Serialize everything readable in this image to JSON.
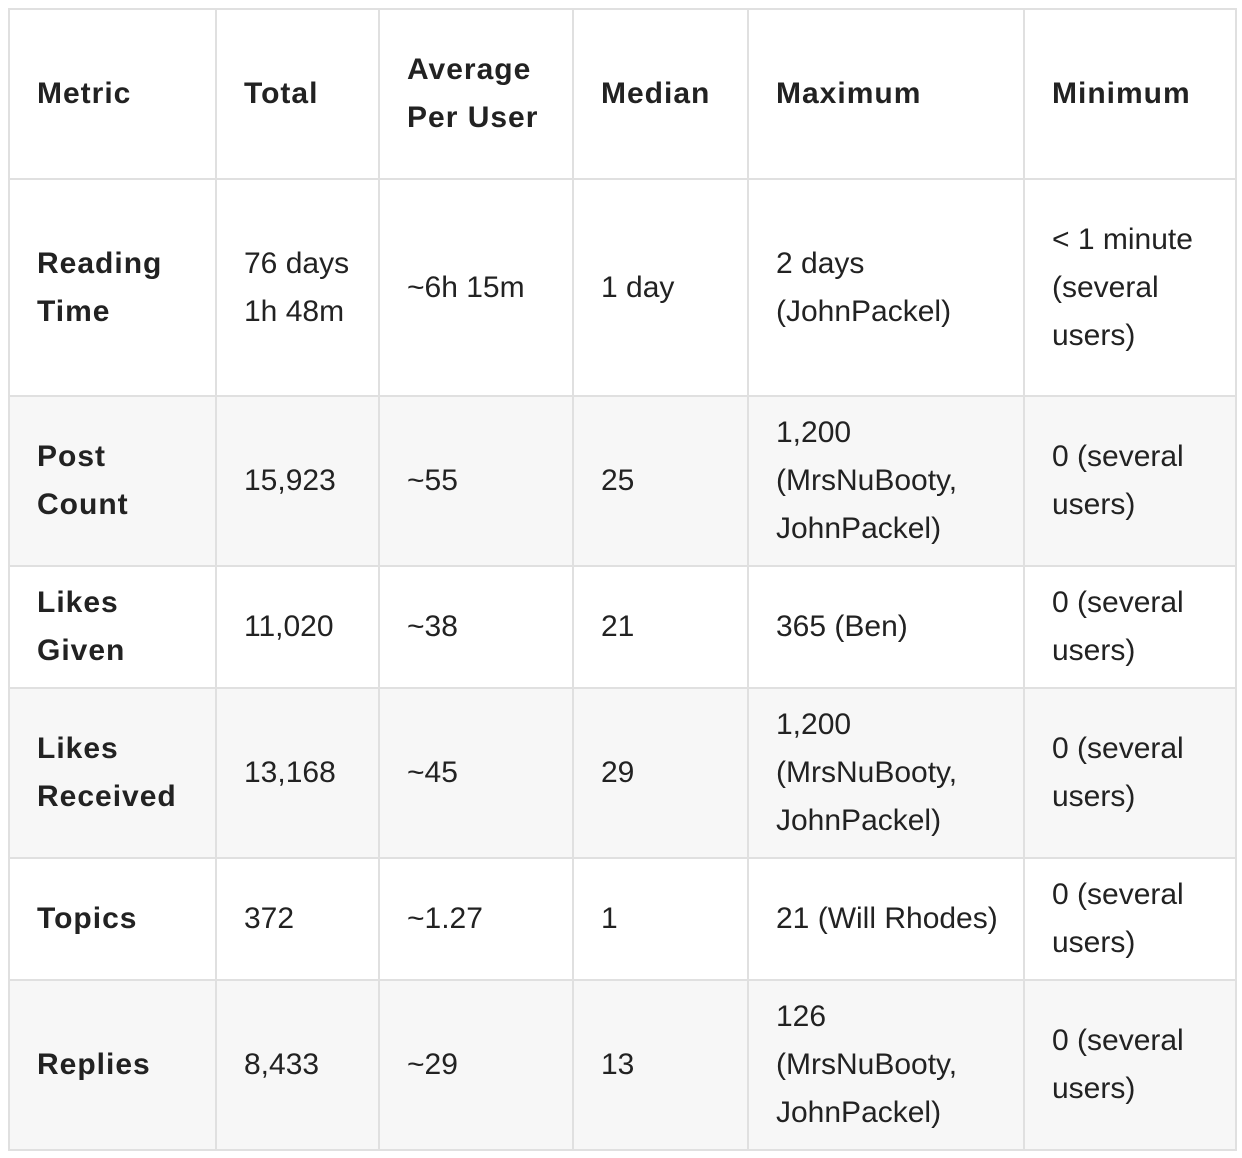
{
  "table": {
    "header": [
      "Metric",
      "Total",
      "Average Per User",
      "Median",
      "Maximum",
      "Minimum"
    ],
    "rows": [
      [
        "Reading Time",
        "76 days 1h 48m",
        "~6h 15m",
        "1 day",
        "2 days (JohnPackel)",
        "< 1 minute (several users)"
      ],
      [
        "Post Count",
        "15,923",
        "~55",
        "25",
        "1,200 (MrsNuBooty, JohnPackel)",
        "0 (several users)"
      ],
      [
        "Likes Given",
        "11,020",
        "~38",
        "21",
        "365 (Ben)",
        "0 (several users)"
      ],
      [
        "Likes Received",
        "13,168",
        "~45",
        "29",
        "1,200 (MrsNuBooty, JohnPackel)",
        "0 (several users)"
      ],
      [
        "Topics",
        "372",
        "~1.27",
        "1",
        "21 (Will Rhodes)",
        "0 (several users)"
      ],
      [
        "Replies",
        "8,433",
        "~29",
        "13",
        "126 (MrsNuBooty, JohnPackel)",
        "0 (several users)"
      ]
    ]
  }
}
